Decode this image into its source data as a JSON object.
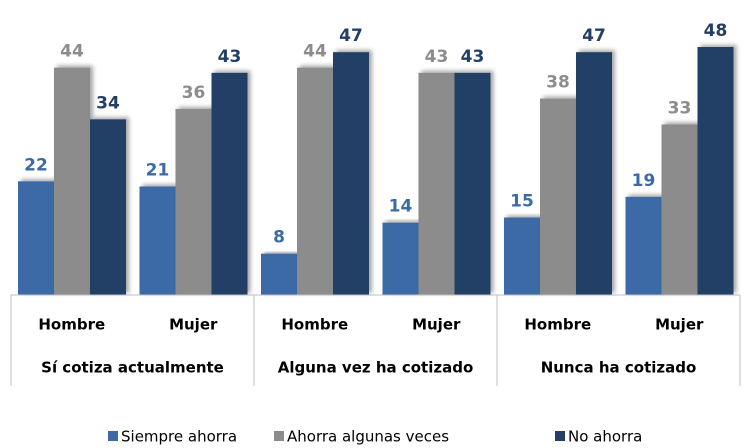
{
  "chart_data": {
    "type": "bar",
    "categories": [
      "Hombre",
      "Mujer",
      "Hombre",
      "Mujer",
      "Hombre",
      "Mujer"
    ],
    "groups": [
      "Sí cotiza actualmente",
      "Alguna vez ha cotizado",
      "Nunca ha cotizado"
    ],
    "series": [
      {
        "name": "Siempre ahorra",
        "color": "#3b6aa6",
        "values": [
          22,
          21,
          8,
          14,
          15,
          19
        ]
      },
      {
        "name": "Ahorra algunas veces",
        "color": "#8c8c8c",
        "values": [
          44,
          36,
          44,
          43,
          38,
          33
        ]
      },
      {
        "name": "No ahorra",
        "color": "#243f66",
        "values": [
          34,
          43,
          47,
          43,
          47,
          48
        ]
      }
    ],
    "legend": "bottom"
  }
}
